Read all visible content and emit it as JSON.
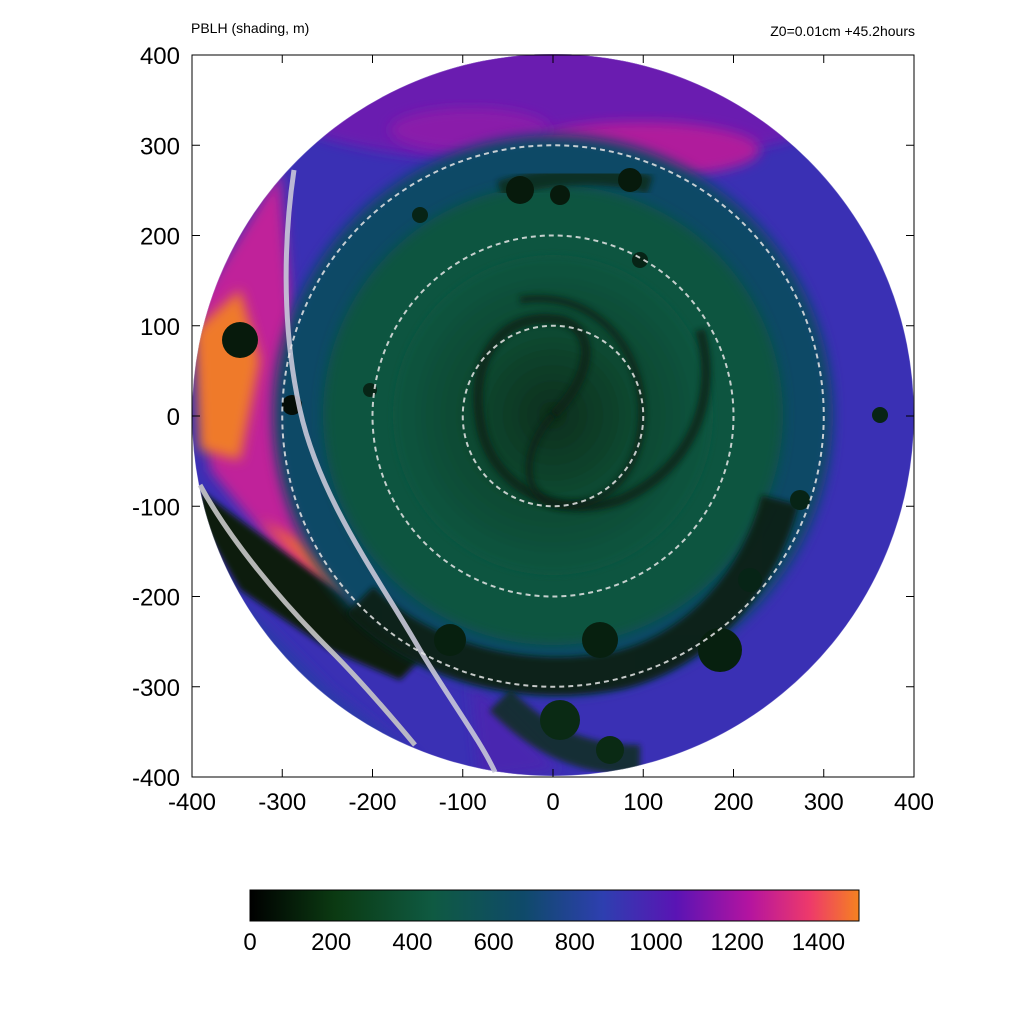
{
  "header": {
    "left_title": "PBLH (shading, m)",
    "right_title": "Z0=0.01cm  +45.2hours"
  },
  "chart_data": {
    "type": "heatmap",
    "title": "PBLH (shading, m)",
    "subtitle": "Z0=0.01cm  +45.2hours",
    "xlim": [
      -400,
      400
    ],
    "ylim": [
      -400,
      400
    ],
    "x_ticks": [
      "-400",
      "-300",
      "-200",
      "-100",
      "0",
      "100",
      "200",
      "300",
      "400"
    ],
    "y_ticks": [
      "400",
      "300",
      "200",
      "100",
      "0",
      "-100",
      "-200",
      "-300",
      "-400"
    ],
    "domain": {
      "shape": "circle",
      "radius": 400
    },
    "colorbar": {
      "min": 0,
      "max": 1500,
      "ticks": [
        "0",
        "200",
        "400",
        "600",
        "800",
        "1000",
        "1200",
        "1400"
      ],
      "colors": [
        "#000000",
        "#0b3a12",
        "#0f5a42",
        "#0f4a6a",
        "#2e3fb0",
        "#5a14b4",
        "#b414a0",
        "#ee3a6a",
        "#f58220"
      ]
    },
    "range_rings": [
      100,
      200,
      300
    ],
    "colors": {
      "low": "#050d06",
      "mid": "#0c4e38",
      "ring": "#0e3e63",
      "outer": "#3c2fb5",
      "high": "#c02494",
      "max": "#f07028",
      "front_line": "#c8c8d2",
      "ring_line": "#e6e6e6"
    }
  }
}
